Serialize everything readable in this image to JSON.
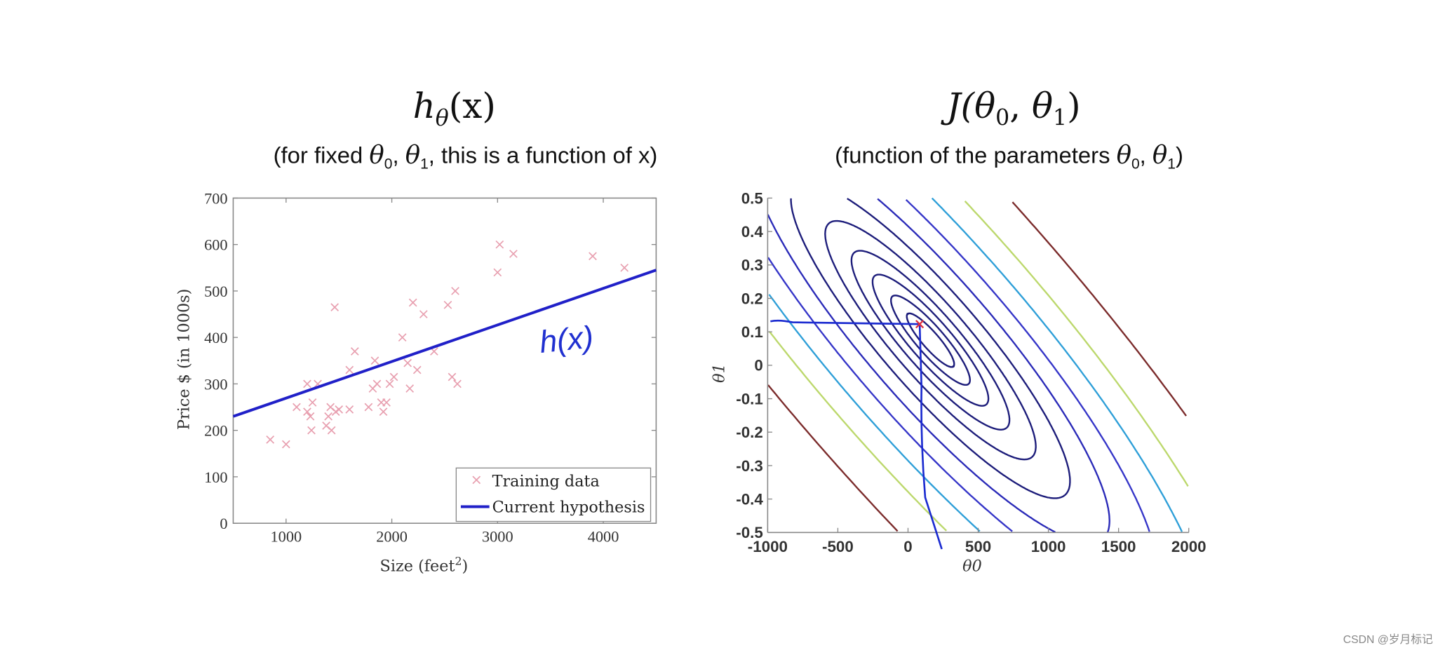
{
  "left": {
    "title_main": "h",
    "title_sub": "θ",
    "title_tail": "(x)",
    "subtitle": {
      "pre": "(for fixed ",
      "t0": "θ",
      "s0": "0",
      "comma": ", ",
      "t1": "θ",
      "s1": "1",
      "post": ", this is a function of x)"
    },
    "annotation": "h(x)"
  },
  "right": {
    "title_pre": "J(",
    "t0": "θ",
    "s0": "0",
    "comma": ", ",
    "t1": "θ",
    "s1": "1",
    "title_post": ")",
    "subtitle": {
      "pre": "(function of the parameters ",
      "t0": "θ",
      "s0": "0",
      "comma": ", ",
      "t1": "θ",
      "s1": "1",
      "post": ")"
    }
  },
  "watermark": "CSDN @岁月标记",
  "chart_data": [
    {
      "type": "scatter",
      "xlabel": "Size (feet",
      "xlabel_sup": "2",
      "xlabel_end": ")",
      "ylabel": "Price $ (in 1000s)",
      "xlim": [
        500,
        4500
      ],
      "ylim": [
        0,
        700
      ],
      "xticks": [
        "1000",
        "2000",
        "3000",
        "4000"
      ],
      "yticks": [
        "0",
        "100",
        "200",
        "300",
        "400",
        "500",
        "600",
        "700"
      ],
      "legend": {
        "position": "bottom-right",
        "entries": [
          "Training data",
          "Current hypothesis"
        ]
      },
      "series": [
        {
          "name": "Training data",
          "marker": "x",
          "color": "#e8a0b0",
          "points": [
            [
              850,
              180
            ],
            [
              1000,
              170
            ],
            [
              1100,
              250
            ],
            [
              1200,
              300
            ],
            [
              1200,
              240
            ],
            [
              1230,
              230
            ],
            [
              1240,
              200
            ],
            [
              1250,
              260
            ],
            [
              1300,
              300
            ],
            [
              1380,
              210
            ],
            [
              1400,
              230
            ],
            [
              1420,
              250
            ],
            [
              1430,
              200
            ],
            [
              1460,
              465
            ],
            [
              1470,
              240
            ],
            [
              1500,
              245
            ],
            [
              1600,
              245
            ],
            [
              1600,
              330
            ],
            [
              1650,
              370
            ],
            [
              1780,
              250
            ],
            [
              1820,
              290
            ],
            [
              1840,
              350
            ],
            [
              1860,
              300
            ],
            [
              1900,
              260
            ],
            [
              1920,
              240
            ],
            [
              1950,
              260
            ],
            [
              1980,
              300
            ],
            [
              2020,
              315
            ],
            [
              2100,
              400
            ],
            [
              2150,
              345
            ],
            [
              2170,
              290
            ],
            [
              2200,
              475
            ],
            [
              2240,
              330
            ],
            [
              2300,
              450
            ],
            [
              2400,
              370
            ],
            [
              2530,
              470
            ],
            [
              2570,
              315
            ],
            [
              2600,
              500
            ],
            [
              2620,
              300
            ],
            [
              3000,
              540
            ],
            [
              3020,
              600
            ],
            [
              3150,
              580
            ],
            [
              3900,
              575
            ],
            [
              4200,
              550
            ]
          ]
        },
        {
          "name": "Current hypothesis",
          "type": "line",
          "color": "#2020c8",
          "points": [
            [
              500,
              230
            ],
            [
              4500,
              545
            ]
          ]
        }
      ]
    },
    {
      "type": "contour",
      "xlabel": "θ0",
      "ylabel": "θ1",
      "xlim": [
        -1000,
        2000
      ],
      "ylim": [
        -0.5,
        0.5
      ],
      "xticks": [
        "-1000",
        "-500",
        "0",
        "500",
        "1000",
        "1500",
        "2000"
      ],
      "yticks": [
        "-0.5",
        "-0.4",
        "-0.3",
        "-0.2",
        "-0.1",
        "0",
        "0.1",
        "0.2",
        "0.3",
        "0.4",
        "0.5"
      ],
      "minimum_marker": {
        "theta0": 83,
        "theta1": 0.123,
        "color": "#e03040"
      },
      "contour_center": {
        "theta0": 160,
        "theta1": 0.075
      },
      "contour_colors": [
        "#1c1c7a",
        "#1c1c7a",
        "#1c1c7a",
        "#1c1c7a",
        "#1c1c7a",
        "#1c1c7a",
        "#2a2ab8",
        "#3535c8",
        "#2e9fd8",
        "#bcd86c",
        "#7b2b2b"
      ],
      "annotation_lines": {
        "color": "#1a2ad0",
        "theta0_at_min": 83,
        "theta1_at_min": 0.123
      }
    }
  ]
}
